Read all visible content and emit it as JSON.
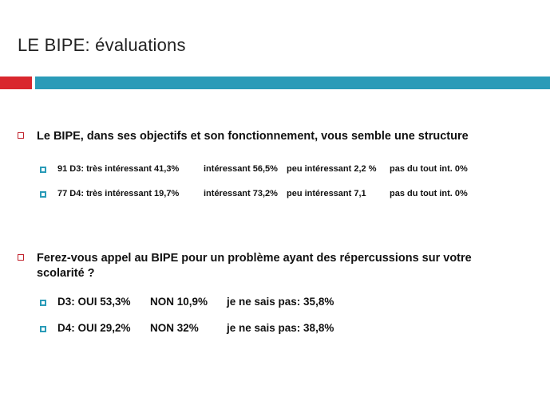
{
  "slide": {
    "title": "LE BIPE: évaluations"
  },
  "question1": {
    "text": "Le BIPE, dans ses objectifs et son fonctionnement, vous semble une structure",
    "rows": [
      {
        "group": "91 D3: très intéressant 41,3%",
        "interessant": "intéressant 56,5%",
        "peu": "peu intéressant 2,2 %",
        "pas": "pas du tout int. 0%"
      },
      {
        "group": "77 D4:  très intéressant 19,7%",
        "interessant": "intéressant 73,2%",
        "peu": "peu intéressant 7,1",
        "pas": "pas du tout int. 0%"
      }
    ]
  },
  "question2": {
    "line1": "Ferez-vous appel au BIPE pour un problème ayant des répercussions sur votre",
    "line2": "scolarité ?",
    "rows": [
      {
        "oui": "D3:  OUI 53,3%",
        "non": "NON 10,9%",
        "nsp": "je ne sais pas: 35,8%"
      },
      {
        "oui": "D4:  OUI 29,2%",
        "non": "NON 32%",
        "nsp": "je ne sais pas: 38,8%"
      }
    ]
  },
  "colors": {
    "accent_red": "#d9272e",
    "accent_blue": "#2a9bb8"
  }
}
